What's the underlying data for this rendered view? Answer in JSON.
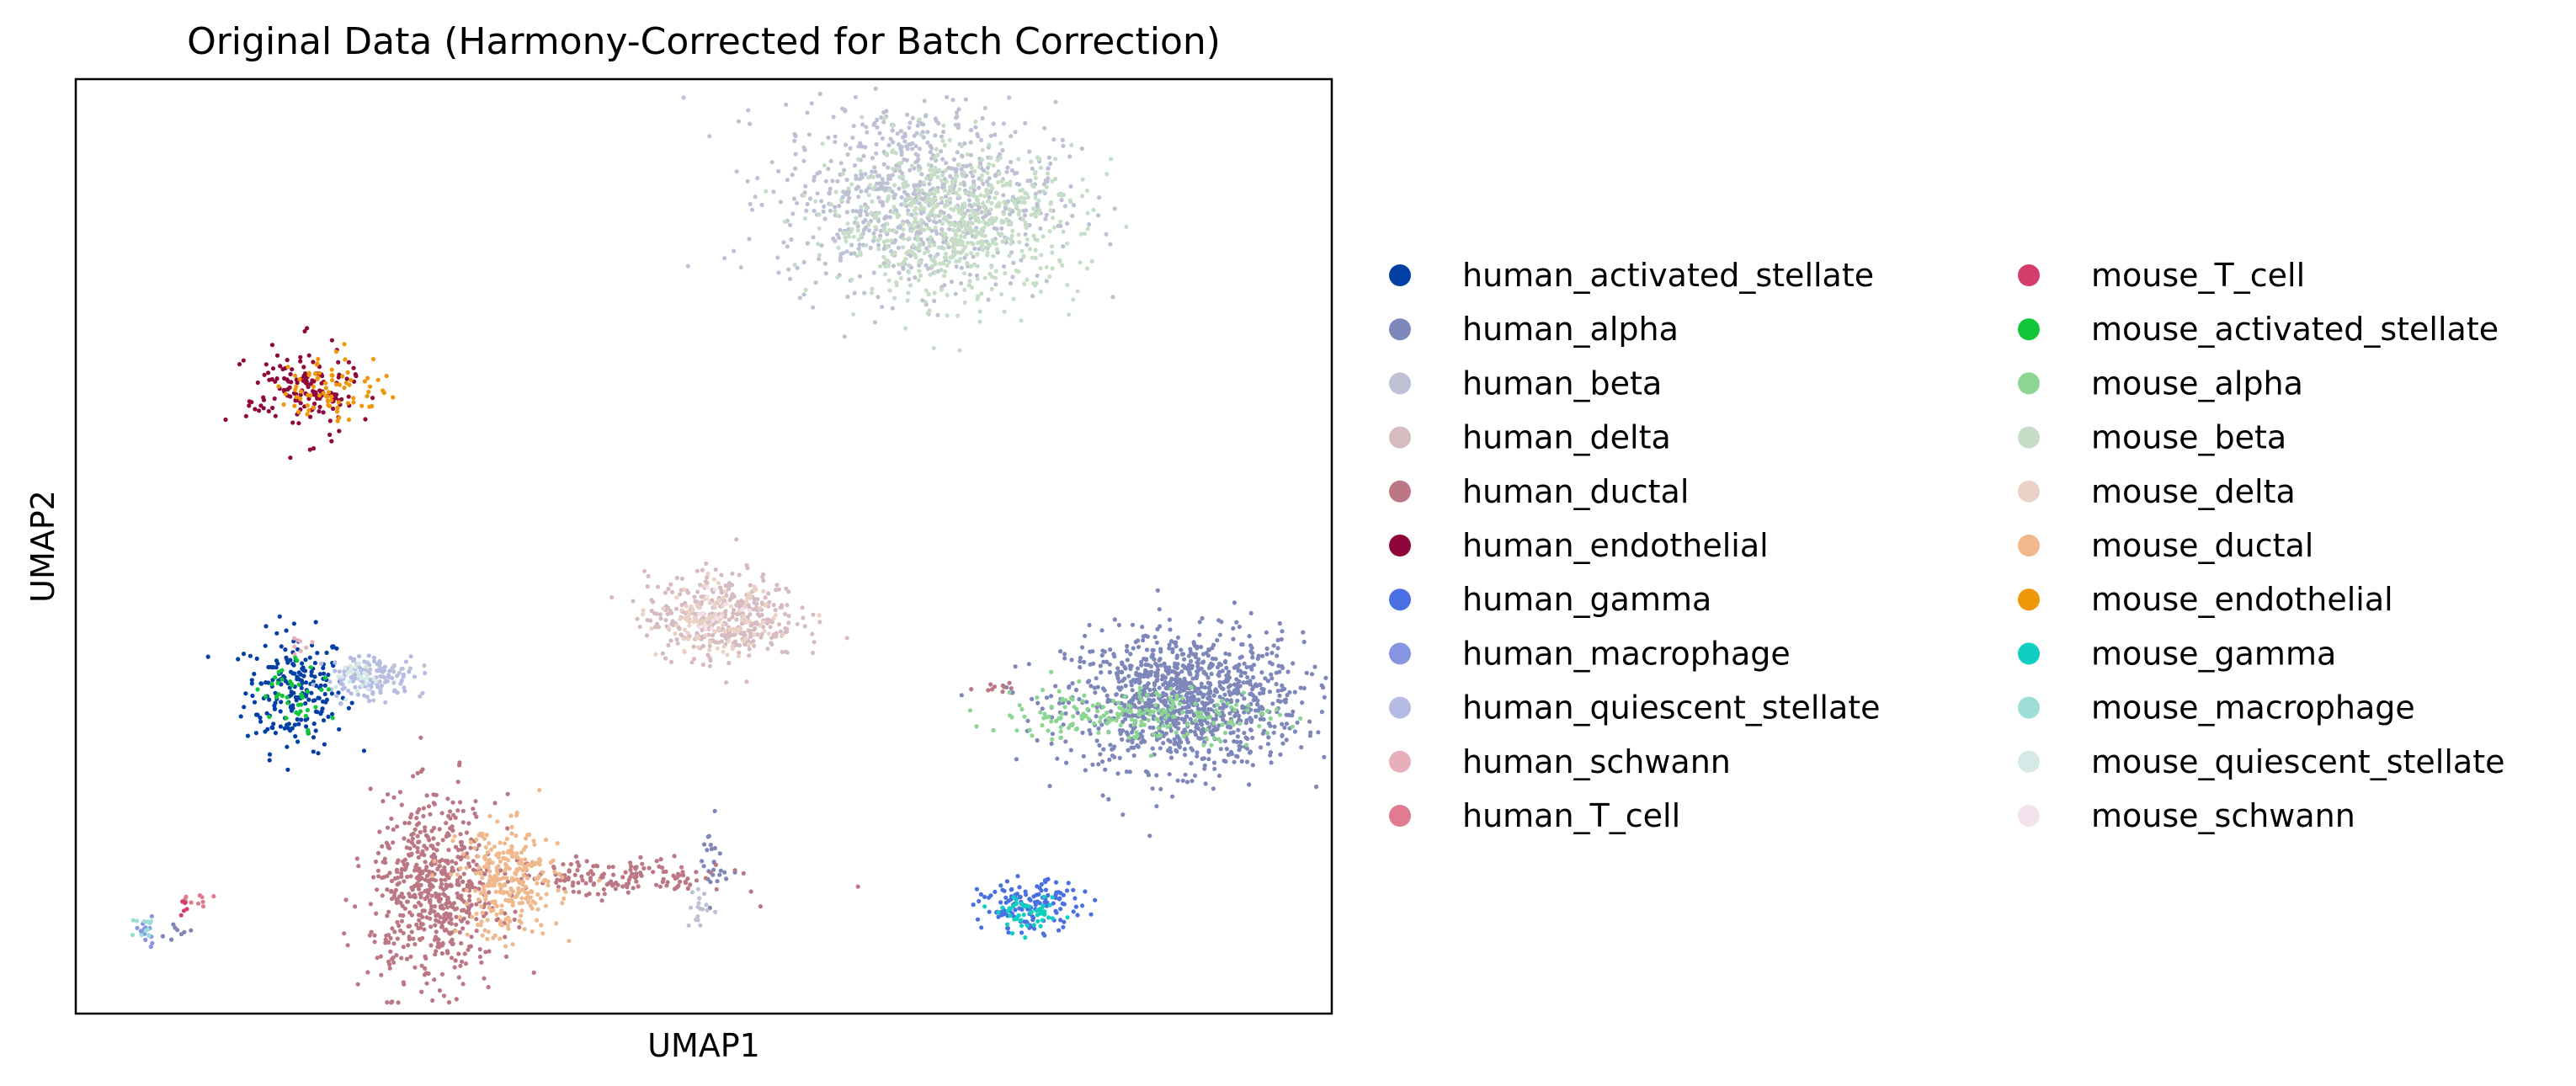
{
  "chart_data": {
    "type": "scatter",
    "title": "Original Data (Harmony-Corrected for Batch Correction)",
    "xlabel": "UMAP1",
    "ylabel": "UMAP2",
    "xlim": [
      0,
      100
    ],
    "ylim": [
      0,
      100
    ],
    "grid": false,
    "ticks": false,
    "legend_position": "right",
    "legend_columns": 2,
    "series": [
      {
        "name": "human_activated_stellate",
        "color": "#023fa5",
        "clusters": [
          {
            "cx": 17.5,
            "cy": 34.5,
            "sx": 2.0,
            "sy": 3.2,
            "n": 210
          }
        ]
      },
      {
        "name": "human_alpha",
        "color": "#7d87b9",
        "clusters": [
          {
            "cx": 88.2,
            "cy": 33.5,
            "sx": 4.7,
            "sy": 3.6,
            "n": 1100
          },
          {
            "cx": 50.7,
            "cy": 16.0,
            "sx": 0.6,
            "sy": 2.2,
            "n": 25
          },
          {
            "cx": 8.0,
            "cy": 8.5,
            "sx": 0.8,
            "sy": 0.8,
            "n": 8
          }
        ]
      },
      {
        "name": "human_beta",
        "color": "#bec1d4",
        "clusters": [
          {
            "cx": 67.0,
            "cy": 87.5,
            "sx": 5.5,
            "sy": 5.0,
            "n": 800
          },
          {
            "cx": 49.5,
            "cy": 11.5,
            "sx": 0.5,
            "sy": 1.5,
            "n": 18
          },
          {
            "cx": 24.0,
            "cy": 36.5,
            "sx": 1.5,
            "sy": 1.0,
            "n": 30
          }
        ]
      },
      {
        "name": "human_delta",
        "color": "#d6bcc0",
        "clusters": [
          {
            "cx": 51.5,
            "cy": 42.5,
            "sx": 3.0,
            "sy": 2.3,
            "n": 380
          }
        ]
      },
      {
        "name": "human_ductal",
        "color": "#bb7784",
        "clusters": [
          {
            "cx": 28.5,
            "cy": 13.0,
            "sx": 2.5,
            "sy": 5.0,
            "n": 600
          },
          {
            "cx": 43.0,
            "cy": 14.5,
            "sx": 4.5,
            "sy": 1.0,
            "n": 160
          },
          {
            "cx": 73.5,
            "cy": 35.0,
            "sx": 0.8,
            "sy": 0.3,
            "n": 10
          }
        ]
      },
      {
        "name": "human_endothelial",
        "color": "#8e063b",
        "clusters": [
          {
            "cx": 18.0,
            "cy": 66.5,
            "sx": 2.2,
            "sy": 2.5,
            "n": 150
          }
        ]
      },
      {
        "name": "human_gamma",
        "color": "#4a6fe3",
        "clusters": [
          {
            "cx": 76.0,
            "cy": 11.5,
            "sx": 2.0,
            "sy": 1.3,
            "n": 140
          }
        ]
      },
      {
        "name": "human_macrophage",
        "color": "#8595e1",
        "clusters": [
          {
            "cx": 5.5,
            "cy": 9.0,
            "sx": 0.6,
            "sy": 0.8,
            "n": 15
          }
        ]
      },
      {
        "name": "human_quiescent_stellate",
        "color": "#b5bbe3",
        "clusters": [
          {
            "cx": 23.5,
            "cy": 36.0,
            "sx": 1.8,
            "sy": 1.2,
            "n": 110
          }
        ]
      },
      {
        "name": "human_schwann",
        "color": "#e6afb9",
        "clusters": [
          {
            "cx": 17.8,
            "cy": 39.5,
            "sx": 0.6,
            "sy": 0.4,
            "n": 8
          }
        ]
      },
      {
        "name": "human_T_cell",
        "color": "#e07b91",
        "clusters": [
          {
            "cx": 9.5,
            "cy": 12.0,
            "sx": 0.6,
            "sy": 0.4,
            "n": 10
          }
        ]
      },
      {
        "name": "mouse_T_cell",
        "color": "#d33f6a",
        "clusters": [
          {
            "cx": 8.8,
            "cy": 11.3,
            "sx": 0.5,
            "sy": 0.4,
            "n": 6
          }
        ]
      },
      {
        "name": "mouse_activated_stellate",
        "color": "#11c638",
        "clusters": [
          {
            "cx": 17.5,
            "cy": 34.5,
            "sx": 1.4,
            "sy": 1.8,
            "n": 40
          }
        ]
      },
      {
        "name": "mouse_alpha",
        "color": "#8dd593",
        "clusters": [
          {
            "cx": 84.5,
            "cy": 32.0,
            "sx": 5.5,
            "sy": 1.5,
            "n": 200
          }
        ]
      },
      {
        "name": "mouse_beta",
        "color": "#c6dec7",
        "clusters": [
          {
            "cx": 70.0,
            "cy": 84.5,
            "sx": 5.0,
            "sy": 4.0,
            "n": 650
          }
        ]
      },
      {
        "name": "mouse_delta",
        "color": "#ead3c6",
        "clusters": [
          {
            "cx": 51.0,
            "cy": 42.0,
            "sx": 2.3,
            "sy": 1.8,
            "n": 130
          }
        ]
      },
      {
        "name": "mouse_ductal",
        "color": "#f0b98d",
        "clusters": [
          {
            "cx": 34.5,
            "cy": 14.0,
            "sx": 2.0,
            "sy": 3.0,
            "n": 280
          }
        ]
      },
      {
        "name": "mouse_endothelial",
        "color": "#ef9708",
        "clusters": [
          {
            "cx": 20.5,
            "cy": 67.0,
            "sx": 2.2,
            "sy": 1.8,
            "n": 80
          }
        ]
      },
      {
        "name": "mouse_gamma",
        "color": "#0fcfc0",
        "clusters": [
          {
            "cx": 76.0,
            "cy": 10.5,
            "sx": 1.2,
            "sy": 0.8,
            "n": 50
          }
        ]
      },
      {
        "name": "mouse_macrophage",
        "color": "#9cded6",
        "clusters": [
          {
            "cx": 5.5,
            "cy": 9.0,
            "sx": 0.5,
            "sy": 0.6,
            "n": 12
          }
        ]
      },
      {
        "name": "mouse_quiescent_stellate",
        "color": "#d5eae7",
        "clusters": [
          {
            "cx": 22.5,
            "cy": 36.0,
            "sx": 1.2,
            "sy": 1.0,
            "n": 30
          }
        ]
      },
      {
        "name": "mouse_schwann",
        "color": "#f3e1eb",
        "clusters": [
          {
            "cx": 51.0,
            "cy": 43.0,
            "sx": 1.5,
            "sy": 1.0,
            "n": 15
          }
        ]
      }
    ]
  }
}
